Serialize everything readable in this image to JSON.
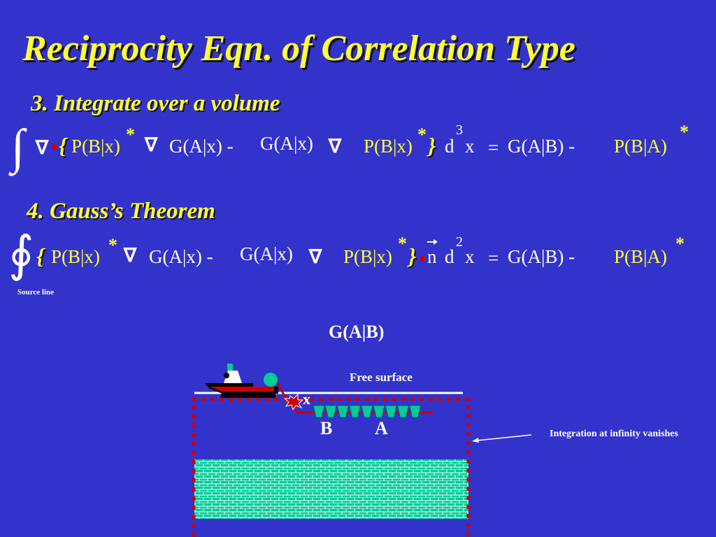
{
  "title": "Reciprocity Eqn. of Correlation Type",
  "section3": {
    "heading": "3. Integrate over a volume",
    "pbx1": "P(B|x)",
    "star": "*",
    "gax1": "G(A|x) -",
    "gax2": "G(A|x)",
    "pbx2": "P(B|x)",
    "open_brace": "{",
    "close_brace": "}",
    "d": "d",
    "power": "3",
    "x": "x",
    "equals": "=",
    "gab": "G(A|B) -",
    "pba": "P(B|A)"
  },
  "section4": {
    "heading": "4. Gauss’s Theorem",
    "pbx1": "P(B|x)",
    "star": "*",
    "gax1": "G(A|x) -",
    "gax2": "G(A|x)",
    "pbx2": "P(B|x)",
    "open_brace": "{",
    "close_brace": "}",
    "n": "n",
    "d": "d",
    "power": "2",
    "x": "x",
    "equals": "=",
    "gab": "G(A|B) -",
    "pba": "P(B|A)",
    "source_line_label": "Source line"
  },
  "diagram": {
    "title": "G(A|B)",
    "free_surface": "Free surface",
    "point_x": "x",
    "receiver_b": "B",
    "receiver_a": "A",
    "annotation": "Integration at infinity vanishes"
  },
  "colors": {
    "background": "#3333cc",
    "accent": "#ffff33",
    "boundary": "#cc0000",
    "teal": "#00cc99"
  }
}
